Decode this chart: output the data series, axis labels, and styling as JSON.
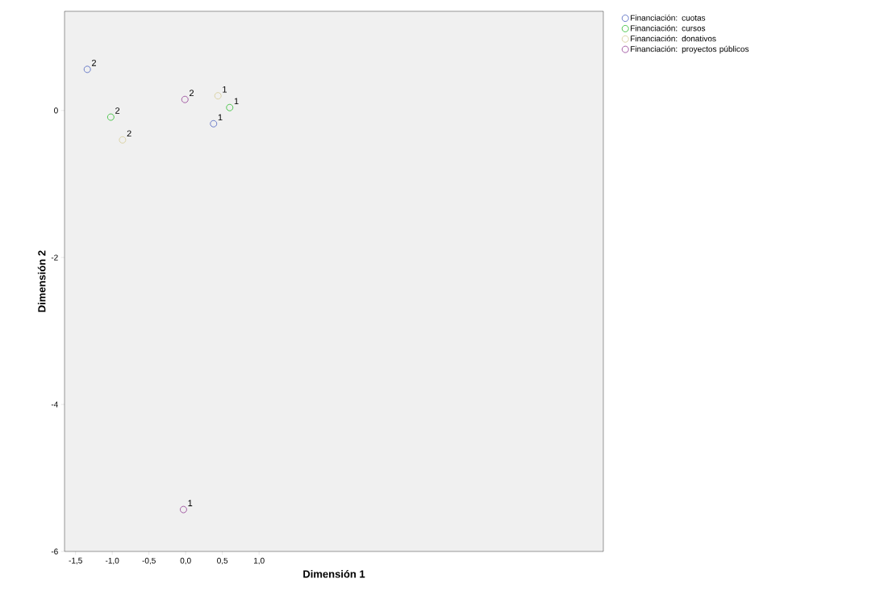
{
  "chart_data": {
    "type": "scatter",
    "xlabel": "Dimensión 1",
    "ylabel": "Dimensión 2",
    "series": [
      {
        "name": "Financiación: cuotas",
        "color": "#5b6fc4",
        "x": [
          -1.34,
          0.38
        ],
        "values": [
          0.56,
          -0.18
        ]
      },
      {
        "name": "Financiación: cursos",
        "color": "#3cc03c",
        "x": [
          -1.02,
          0.6
        ],
        "values": [
          -0.09,
          0.04
        ]
      },
      {
        "name": "Financiación: donativos",
        "color": "#d8cf9e",
        "x": [
          -0.86,
          0.44
        ],
        "values": [
          -0.4,
          0.2
        ]
      },
      {
        "name": "Financiación: proyectos públicos",
        "color": "#9a4c9c",
        "x": [
          -0.01,
          -0.03
        ],
        "values": [
          0.15,
          -5.43
        ]
      }
    ],
    "annotations": [
      {
        "text": "2",
        "x": -1.34,
        "y": 0.56
      },
      {
        "text": "1",
        "x": 0.38,
        "y": -0.18
      },
      {
        "text": "2",
        "x": -1.02,
        "y": -0.09
      },
      {
        "text": "1",
        "x": 0.6,
        "y": 0.04
      },
      {
        "text": "2",
        "x": -0.86,
        "y": -0.4
      },
      {
        "text": "1",
        "x": 0.44,
        "y": 0.2
      },
      {
        "text": "2",
        "x": -0.01,
        "y": 0.15
      },
      {
        "text": "1",
        "x": -0.03,
        "y": -5.43
      }
    ],
    "xlim": [
      -1.65,
      5.69
    ],
    "ylim": [
      -6,
      1.35
    ],
    "xticks": [
      {
        "value": -1.5,
        "label": "-1,5"
      },
      {
        "value": -1.0,
        "label": "-1,0"
      },
      {
        "value": -0.5,
        "label": "-0,5"
      },
      {
        "value": 0.0,
        "label": "0,0"
      },
      {
        "value": 0.5,
        "label": "0,5"
      },
      {
        "value": 1.0,
        "label": "1,0"
      }
    ],
    "yticks": [
      -6,
      -4,
      -2,
      0
    ],
    "grid": false,
    "legend": "top right",
    "marker": "circle"
  }
}
